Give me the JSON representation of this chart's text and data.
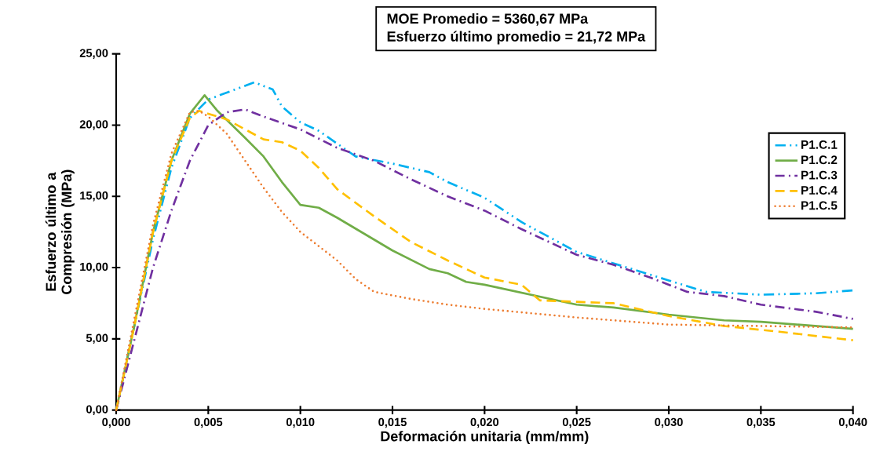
{
  "chart_data": {
    "type": "line",
    "xlabel": "Deformación unitaria (mm/mm)",
    "ylabel": "Esfuerzo último a Compresión (MPa)",
    "annotations": [
      "MOE Promedio = 5360,67 MPa",
      "Esfuerzo último promedio = 21,72 MPa"
    ],
    "xlim": [
      0,
      0.04
    ],
    "ylim": [
      0,
      25
    ],
    "xticks": [
      {
        "value": 0,
        "label": "0,000"
      },
      {
        "value": 0.005,
        "label": "0,005"
      },
      {
        "value": 0.01,
        "label": "0,010"
      },
      {
        "value": 0.015,
        "label": "0,015"
      },
      {
        "value": 0.02,
        "label": "0,020"
      },
      {
        "value": 0.025,
        "label": "0,025"
      },
      {
        "value": 0.03,
        "label": "0,030"
      },
      {
        "value": 0.035,
        "label": "0,035"
      },
      {
        "value": 0.04,
        "label": "0,040"
      }
    ],
    "yticks": [
      {
        "value": 0,
        "label": "0,00"
      },
      {
        "value": 5,
        "label": "5,00"
      },
      {
        "value": 10,
        "label": "10,00"
      },
      {
        "value": 15,
        "label": "15,00"
      },
      {
        "value": 20,
        "label": "20,00"
      },
      {
        "value": 25,
        "label": "25,00"
      }
    ],
    "grid": false,
    "legend": "top right",
    "marker": "none",
    "series": [
      {
        "name": "P1.C.1",
        "color": "#00b0f0",
        "line_style": "dashdotdot",
        "x": [
          0,
          0.001,
          0.002,
          0.003,
          0.004,
          0.005,
          0.0075,
          0.0085,
          0.009,
          0.01,
          0.011,
          0.013,
          0.015,
          0.017,
          0.018,
          0.02,
          0.022,
          0.025,
          0.028,
          0.03,
          0.032,
          0.035,
          0.038,
          0.04
        ],
        "values": [
          0,
          6,
          12,
          17,
          20.5,
          21.8,
          23.0,
          22.5,
          21.3,
          20.2,
          19.6,
          17.8,
          17.3,
          16.7,
          16.0,
          14.9,
          13.2,
          11.1,
          9.9,
          9.1,
          8.3,
          8.1,
          8.2,
          8.4
        ]
      },
      {
        "name": "P1.C.2",
        "color": "#70ad47",
        "line_style": "solid",
        "x": [
          0,
          0.001,
          0.002,
          0.003,
          0.004,
          0.0048,
          0.0055,
          0.007,
          0.008,
          0.009,
          0.01,
          0.011,
          0.012,
          0.015,
          0.017,
          0.018,
          0.019,
          0.02,
          0.025,
          0.027,
          0.03,
          0.033,
          0.035,
          0.04
        ],
        "values": [
          0,
          6,
          12.5,
          17.5,
          20.8,
          22.1,
          21.0,
          19.1,
          17.8,
          16.0,
          14.4,
          14.2,
          13.5,
          11.2,
          9.9,
          9.6,
          9.0,
          8.8,
          7.4,
          7.2,
          6.7,
          6.3,
          6.2,
          5.7
        ]
      },
      {
        "name": "P1.C.3",
        "color": "#7030a0",
        "line_style": "dashdot",
        "x": [
          0,
          0.001,
          0.002,
          0.003,
          0.004,
          0.005,
          0.006,
          0.007,
          0.008,
          0.01,
          0.012,
          0.014,
          0.016,
          0.018,
          0.02,
          0.022,
          0.025,
          0.027,
          0.029,
          0.031,
          0.033,
          0.035,
          0.038,
          0.04
        ],
        "values": [
          0,
          5,
          10,
          14,
          17.5,
          20.0,
          20.9,
          21.1,
          20.6,
          19.7,
          18.4,
          17.5,
          16.2,
          15.0,
          14.0,
          12.7,
          10.9,
          10.2,
          9.3,
          8.3,
          8.0,
          7.4,
          6.9,
          6.4
        ]
      },
      {
        "name": "P1.C.4",
        "color": "#ffc000",
        "line_style": "dashed",
        "x": [
          0,
          0.001,
          0.002,
          0.003,
          0.004,
          0.0045,
          0.005,
          0.006,
          0.008,
          0.009,
          0.01,
          0.011,
          0.012,
          0.014,
          0.016,
          0.018,
          0.02,
          0.022,
          0.023,
          0.025,
          0.027,
          0.03,
          0.033,
          0.036,
          0.04
        ],
        "values": [
          0,
          6,
          12.5,
          17.5,
          20.5,
          21.0,
          20.8,
          20.4,
          19.0,
          18.8,
          18.2,
          17.0,
          15.5,
          13.6,
          11.8,
          10.5,
          9.3,
          8.8,
          7.7,
          7.6,
          7.5,
          6.6,
          5.9,
          5.5,
          4.9
        ]
      },
      {
        "name": "P1.C.5",
        "color": "#ed7d31",
        "line_style": "dotted",
        "x": [
          0,
          0.001,
          0.002,
          0.003,
          0.004,
          0.0045,
          0.005,
          0.006,
          0.007,
          0.008,
          0.009,
          0.01,
          0.012,
          0.013,
          0.014,
          0.016,
          0.018,
          0.02,
          0.025,
          0.03,
          0.035,
          0.04
        ],
        "values": [
          0,
          6.5,
          13,
          18,
          20.9,
          21.0,
          20.6,
          19.4,
          17.5,
          15.6,
          13.9,
          12.5,
          10.5,
          9.2,
          8.3,
          7.8,
          7.4,
          7.1,
          6.5,
          6.0,
          5.9,
          5.8
        ]
      }
    ]
  }
}
